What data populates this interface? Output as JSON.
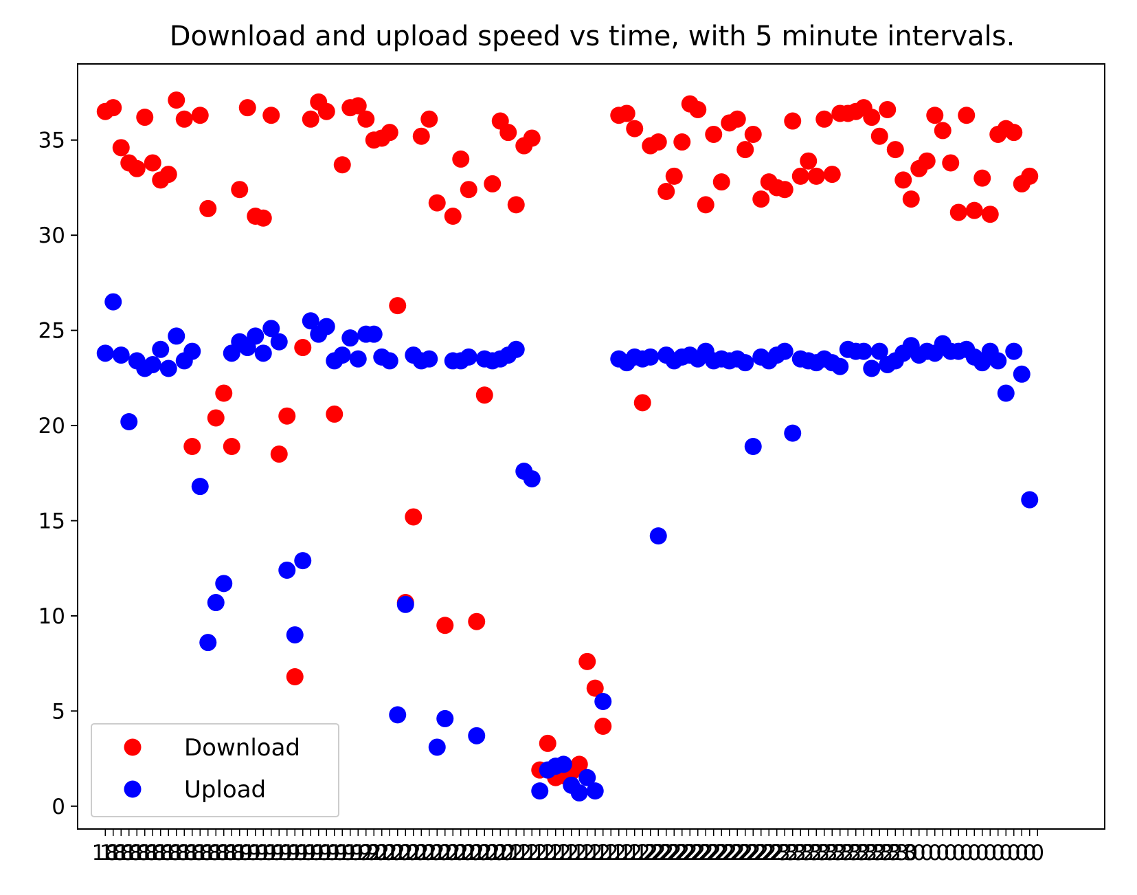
{
  "chart_data": {
    "type": "scatter",
    "title": "Download and upload speed vs time, with 5 minute intervals.",
    "xlabel": "",
    "ylabel": "",
    "ylim": [
      -1.2,
      39.0
    ],
    "xlim": [
      -3.5,
      126.5
    ],
    "yticks": [
      0,
      5,
      10,
      15,
      20,
      25,
      30,
      35
    ],
    "xtick_label_fragments": [
      "18",
      "19",
      "20",
      "21",
      "22",
      "23",
      "0"
    ],
    "x_tick_count": 119,
    "legend": {
      "location": "lower-left",
      "entries": [
        "Download",
        "Upload"
      ]
    },
    "colors": {
      "download": "#ff0000",
      "upload": "#0000ff"
    },
    "series": [
      {
        "name": "Download",
        "color": "#ff0000",
        "points": [
          [
            0,
            36.5
          ],
          [
            1,
            36.7
          ],
          [
            2,
            34.6
          ],
          [
            3,
            33.8
          ],
          [
            4,
            33.5
          ],
          [
            5,
            36.2
          ],
          [
            6,
            33.8
          ],
          [
            7,
            32.9
          ],
          [
            8,
            33.2
          ],
          [
            9,
            37.1
          ],
          [
            10,
            36.1
          ],
          [
            11,
            18.9
          ],
          [
            12,
            36.3
          ],
          [
            13,
            31.4
          ],
          [
            14,
            20.4
          ],
          [
            15,
            21.7
          ],
          [
            16,
            18.9
          ],
          [
            17,
            32.4
          ],
          [
            18,
            36.7
          ],
          [
            19,
            31.0
          ],
          [
            20,
            30.9
          ],
          [
            21,
            36.3
          ],
          [
            22,
            18.5
          ],
          [
            23,
            20.5
          ],
          [
            24,
            6.8
          ],
          [
            25,
            24.1
          ],
          [
            26,
            36.1
          ],
          [
            27,
            37.0
          ],
          [
            28,
            36.5
          ],
          [
            29,
            20.6
          ],
          [
            30,
            33.7
          ],
          [
            31,
            36.7
          ],
          [
            32,
            36.8
          ],
          [
            33,
            36.1
          ],
          [
            34,
            35.0
          ],
          [
            35,
            35.1
          ],
          [
            36,
            35.4
          ],
          [
            37,
            26.3
          ],
          [
            38,
            10.7
          ],
          [
            39,
            15.2
          ],
          [
            40,
            35.2
          ],
          [
            41,
            36.1
          ],
          [
            42,
            31.7
          ],
          [
            43,
            9.5
          ],
          [
            44,
            31.0
          ],
          [
            45,
            34.0
          ],
          [
            46,
            32.4
          ],
          [
            47,
            9.7
          ],
          [
            48,
            21.6
          ],
          [
            49,
            32.7
          ],
          [
            50,
            36.0
          ],
          [
            51,
            35.4
          ],
          [
            52,
            31.6
          ],
          [
            53,
            34.7
          ],
          [
            54,
            35.1
          ],
          [
            55,
            1.9
          ],
          [
            56,
            3.3
          ],
          [
            57,
            1.5
          ],
          [
            58,
            1.6
          ],
          [
            59,
            1.8
          ],
          [
            60,
            2.2
          ],
          [
            61,
            7.6
          ],
          [
            62,
            6.2
          ],
          [
            63,
            4.2
          ],
          [
            65,
            36.3
          ],
          [
            66,
            36.4
          ],
          [
            67,
            35.6
          ],
          [
            68,
            21.2
          ],
          [
            69,
            34.7
          ],
          [
            70,
            34.9
          ],
          [
            71,
            32.3
          ],
          [
            72,
            33.1
          ],
          [
            73,
            34.9
          ],
          [
            74,
            36.9
          ],
          [
            75,
            36.6
          ],
          [
            76,
            31.6
          ],
          [
            77,
            35.3
          ],
          [
            78,
            32.8
          ],
          [
            79,
            35.9
          ],
          [
            80,
            36.1
          ],
          [
            81,
            34.5
          ],
          [
            82,
            35.3
          ],
          [
            83,
            31.9
          ],
          [
            84,
            32.8
          ],
          [
            85,
            32.5
          ],
          [
            86,
            32.4
          ],
          [
            87,
            36.0
          ],
          [
            88,
            33.1
          ],
          [
            89,
            33.9
          ],
          [
            90,
            33.1
          ],
          [
            91,
            36.1
          ],
          [
            92,
            33.2
          ],
          [
            93,
            36.4
          ],
          [
            94,
            36.4
          ],
          [
            95,
            36.5
          ],
          [
            96,
            36.7
          ],
          [
            97,
            36.2
          ],
          [
            98,
            35.2
          ],
          [
            99,
            36.6
          ],
          [
            100,
            34.5
          ],
          [
            101,
            32.9
          ],
          [
            102,
            31.9
          ],
          [
            103,
            33.5
          ],
          [
            104,
            33.9
          ],
          [
            105,
            36.3
          ],
          [
            106,
            35.5
          ],
          [
            107,
            33.8
          ],
          [
            108,
            31.2
          ],
          [
            109,
            36.3
          ],
          [
            110,
            31.3
          ],
          [
            111,
            33.0
          ],
          [
            112,
            31.1
          ],
          [
            113,
            35.3
          ],
          [
            114,
            35.6
          ],
          [
            115,
            35.4
          ],
          [
            116,
            32.7
          ],
          [
            117,
            33.1
          ]
        ]
      },
      {
        "name": "Upload",
        "color": "#0000ff",
        "points": [
          [
            0,
            23.8
          ],
          [
            1,
            26.5
          ],
          [
            2,
            23.7
          ],
          [
            3,
            20.2
          ],
          [
            4,
            23.4
          ],
          [
            5,
            23.0
          ],
          [
            6,
            23.2
          ],
          [
            7,
            24.0
          ],
          [
            8,
            23.0
          ],
          [
            9,
            24.7
          ],
          [
            10,
            23.4
          ],
          [
            11,
            23.9
          ],
          [
            12,
            16.8
          ],
          [
            13,
            8.6
          ],
          [
            14,
            10.7
          ],
          [
            15,
            11.7
          ],
          [
            16,
            23.8
          ],
          [
            17,
            24.4
          ],
          [
            18,
            24.1
          ],
          [
            19,
            24.7
          ],
          [
            20,
            23.8
          ],
          [
            21,
            25.1
          ],
          [
            22,
            24.4
          ],
          [
            23,
            12.4
          ],
          [
            24,
            9.0
          ],
          [
            25,
            12.9
          ],
          [
            26,
            25.5
          ],
          [
            27,
            24.8
          ],
          [
            28,
            25.2
          ],
          [
            29,
            23.4
          ],
          [
            30,
            23.7
          ],
          [
            31,
            24.6
          ],
          [
            32,
            23.5
          ],
          [
            33,
            24.8
          ],
          [
            34,
            24.8
          ],
          [
            35,
            23.6
          ],
          [
            36,
            23.4
          ],
          [
            37,
            4.8
          ],
          [
            38,
            10.6
          ],
          [
            39,
            23.7
          ],
          [
            40,
            23.4
          ],
          [
            41,
            23.5
          ],
          [
            42,
            3.1
          ],
          [
            43,
            4.6
          ],
          [
            44,
            23.4
          ],
          [
            45,
            23.4
          ],
          [
            46,
            23.6
          ],
          [
            47,
            3.7
          ],
          [
            48,
            23.5
          ],
          [
            49,
            23.4
          ],
          [
            50,
            23.5
          ],
          [
            51,
            23.7
          ],
          [
            52,
            24.0
          ],
          [
            53,
            17.6
          ],
          [
            54,
            17.2
          ],
          [
            55,
            0.8
          ],
          [
            56,
            1.9
          ],
          [
            57,
            2.1
          ],
          [
            58,
            2.2
          ],
          [
            59,
            1.1
          ],
          [
            60,
            0.7
          ],
          [
            61,
            1.5
          ],
          [
            62,
            0.8
          ],
          [
            63,
            5.5
          ],
          [
            65,
            23.5
          ],
          [
            66,
            23.3
          ],
          [
            67,
            23.6
          ],
          [
            68,
            23.5
          ],
          [
            69,
            23.6
          ],
          [
            70,
            14.2
          ],
          [
            71,
            23.7
          ],
          [
            72,
            23.4
          ],
          [
            73,
            23.6
          ],
          [
            74,
            23.7
          ],
          [
            75,
            23.5
          ],
          [
            76,
            23.9
          ],
          [
            77,
            23.4
          ],
          [
            78,
            23.5
          ],
          [
            79,
            23.4
          ],
          [
            80,
            23.5
          ],
          [
            81,
            23.3
          ],
          [
            82,
            18.9
          ],
          [
            83,
            23.6
          ],
          [
            84,
            23.4
          ],
          [
            85,
            23.7
          ],
          [
            86,
            23.9
          ],
          [
            87,
            19.6
          ],
          [
            88,
            23.5
          ],
          [
            89,
            23.4
          ],
          [
            90,
            23.3
          ],
          [
            91,
            23.5
          ],
          [
            92,
            23.3
          ],
          [
            93,
            23.1
          ],
          [
            94,
            24.0
          ],
          [
            95,
            23.9
          ],
          [
            96,
            23.9
          ],
          [
            97,
            23.0
          ],
          [
            98,
            23.9
          ],
          [
            99,
            23.2
          ],
          [
            100,
            23.4
          ],
          [
            101,
            23.8
          ],
          [
            102,
            24.2
          ],
          [
            103,
            23.7
          ],
          [
            104,
            23.9
          ],
          [
            105,
            23.8
          ],
          [
            106,
            24.3
          ],
          [
            107,
            23.9
          ],
          [
            108,
            23.9
          ],
          [
            109,
            24.0
          ],
          [
            110,
            23.6
          ],
          [
            111,
            23.3
          ],
          [
            112,
            23.9
          ],
          [
            113,
            23.4
          ],
          [
            114,
            21.7
          ],
          [
            115,
            23.9
          ],
          [
            116,
            22.7
          ],
          [
            117,
            16.1
          ]
        ]
      }
    ]
  }
}
